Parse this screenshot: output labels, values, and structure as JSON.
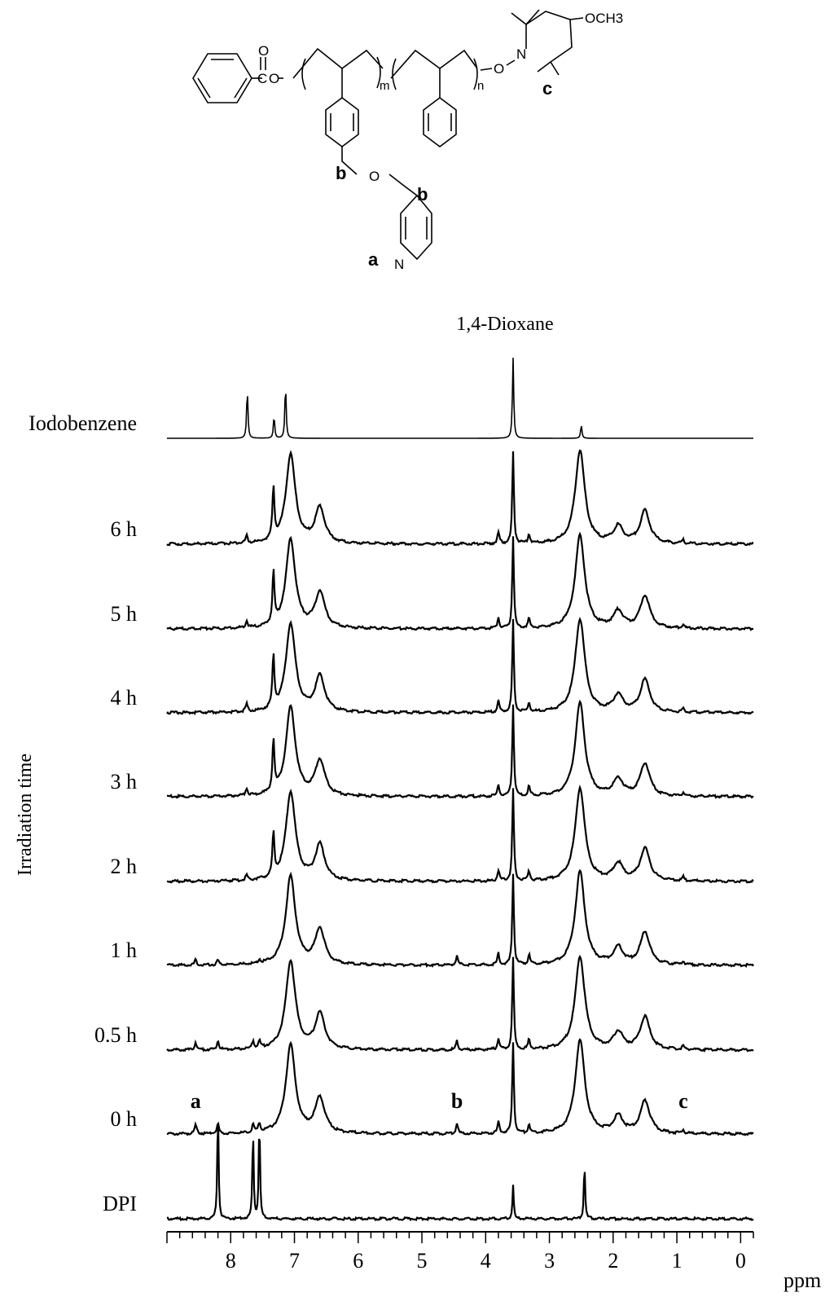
{
  "figure": {
    "structure_labels": {
      "ester_o": "O",
      "ester_link": "O",
      "ester_c": "C",
      "m": "m",
      "n": "n",
      "nitroxide_o": "O",
      "n_atom": "N",
      "methoxy": "OCH3",
      "ether_o": "O",
      "pyridine_n": "N",
      "a": "a",
      "b1": "b",
      "b2": "b",
      "c": "c"
    }
  },
  "chart_data": {
    "type": "line",
    "title": "",
    "xlabel": "ppm",
    "ylabel": "Irradiation time",
    "xlim": [
      9.0,
      -0.2
    ],
    "x_reversed": true,
    "x_ticks": [
      8,
      7,
      6,
      5,
      4,
      3,
      2,
      1,
      0
    ],
    "x_tick_labels": [
      "8",
      "7",
      "6",
      "5",
      "4",
      "3",
      "2",
      "1",
      "0"
    ],
    "grid": false,
    "annotations": [
      {
        "text": "1,4-Dioxane",
        "x": 3.57
      },
      {
        "text": "a",
        "x": 8.55,
        "series": "0 h"
      },
      {
        "text": "b",
        "x": 4.45,
        "series": "0 h"
      },
      {
        "text": "c",
        "x": 0.9,
        "series": "0 h"
      }
    ],
    "series": [
      {
        "name": "Iodobenzene",
        "peaks": [
          [
            7.74,
            0.55
          ],
          [
            7.32,
            0.25
          ],
          [
            7.14,
            0.6
          ],
          [
            3.57,
            0.9
          ],
          [
            2.5,
            0.15
          ]
        ]
      },
      {
        "name": "6 h",
        "peaks": [
          [
            7.75,
            0.08
          ],
          [
            7.33,
            0.55
          ],
          [
            7.06,
            0.95
          ],
          [
            6.6,
            0.38
          ],
          [
            3.8,
            0.12
          ],
          [
            3.57,
            0.98
          ],
          [
            3.32,
            0.1
          ],
          [
            2.52,
            1.0
          ],
          [
            1.92,
            0.18
          ],
          [
            1.5,
            0.35
          ],
          [
            0.9,
            0.04
          ]
        ]
      },
      {
        "name": "5 h",
        "peaks": [
          [
            7.75,
            0.08
          ],
          [
            7.33,
            0.55
          ],
          [
            7.06,
            0.95
          ],
          [
            6.6,
            0.38
          ],
          [
            3.8,
            0.12
          ],
          [
            3.57,
            0.98
          ],
          [
            3.32,
            0.1
          ],
          [
            2.52,
            1.0
          ],
          [
            1.92,
            0.18
          ],
          [
            1.5,
            0.35
          ],
          [
            0.9,
            0.04
          ]
        ]
      },
      {
        "name": "4 h",
        "peaks": [
          [
            7.75,
            0.08
          ],
          [
            7.33,
            0.55
          ],
          [
            7.06,
            0.95
          ],
          [
            6.6,
            0.38
          ],
          [
            3.8,
            0.12
          ],
          [
            3.57,
            0.98
          ],
          [
            3.32,
            0.1
          ],
          [
            2.52,
            1.0
          ],
          [
            1.92,
            0.18
          ],
          [
            1.5,
            0.35
          ],
          [
            0.9,
            0.04
          ]
        ]
      },
      {
        "name": "3 h",
        "peaks": [
          [
            7.75,
            0.08
          ],
          [
            7.33,
            0.55
          ],
          [
            7.06,
            0.95
          ],
          [
            6.6,
            0.38
          ],
          [
            3.8,
            0.12
          ],
          [
            3.57,
            0.98
          ],
          [
            3.32,
            0.1
          ],
          [
            2.52,
            1.0
          ],
          [
            1.92,
            0.18
          ],
          [
            1.5,
            0.35
          ],
          [
            0.9,
            0.04
          ]
        ]
      },
      {
        "name": "2 h",
        "peaks": [
          [
            7.75,
            0.06
          ],
          [
            7.33,
            0.45
          ],
          [
            7.06,
            0.95
          ],
          [
            6.6,
            0.38
          ],
          [
            3.8,
            0.12
          ],
          [
            3.57,
            0.98
          ],
          [
            3.32,
            0.1
          ],
          [
            2.52,
            1.0
          ],
          [
            1.92,
            0.18
          ],
          [
            1.5,
            0.35
          ],
          [
            0.9,
            0.04
          ]
        ]
      },
      {
        "name": "1 h",
        "peaks": [
          [
            8.55,
            0.06
          ],
          [
            8.2,
            0.05
          ],
          [
            7.55,
            0.04
          ],
          [
            7.06,
            0.95
          ],
          [
            6.6,
            0.38
          ],
          [
            4.45,
            0.1
          ],
          [
            3.8,
            0.12
          ],
          [
            3.57,
            0.98
          ],
          [
            3.32,
            0.1
          ],
          [
            2.52,
            1.0
          ],
          [
            1.92,
            0.18
          ],
          [
            1.5,
            0.35
          ],
          [
            0.9,
            0.04
          ]
        ]
      },
      {
        "name": "0.5 h",
        "peaks": [
          [
            8.55,
            0.08
          ],
          [
            8.2,
            0.1
          ],
          [
            7.65,
            0.08
          ],
          [
            7.55,
            0.07
          ],
          [
            7.06,
            0.95
          ],
          [
            6.6,
            0.38
          ],
          [
            4.45,
            0.1
          ],
          [
            3.8,
            0.12
          ],
          [
            3.57,
            0.98
          ],
          [
            3.32,
            0.1
          ],
          [
            2.52,
            1.0
          ],
          [
            1.92,
            0.18
          ],
          [
            1.5,
            0.35
          ],
          [
            0.9,
            0.04
          ]
        ]
      },
      {
        "name": "0 h",
        "peaks": [
          [
            8.55,
            0.1
          ],
          [
            8.2,
            0.1
          ],
          [
            7.65,
            0.08
          ],
          [
            7.55,
            0.1
          ],
          [
            7.06,
            0.95
          ],
          [
            6.6,
            0.38
          ],
          [
            4.45,
            0.12
          ],
          [
            3.8,
            0.12
          ],
          [
            3.57,
            0.98
          ],
          [
            3.32,
            0.1
          ],
          [
            2.52,
            1.0
          ],
          [
            1.92,
            0.18
          ],
          [
            1.5,
            0.35
          ],
          [
            0.9,
            0.04
          ]
        ]
      },
      {
        "name": "DPI",
        "peaks": [
          [
            8.2,
            1.0
          ],
          [
            7.65,
            0.8
          ],
          [
            7.55,
            0.9
          ],
          [
            3.57,
            0.3
          ],
          [
            2.45,
            0.5
          ]
        ]
      }
    ]
  }
}
